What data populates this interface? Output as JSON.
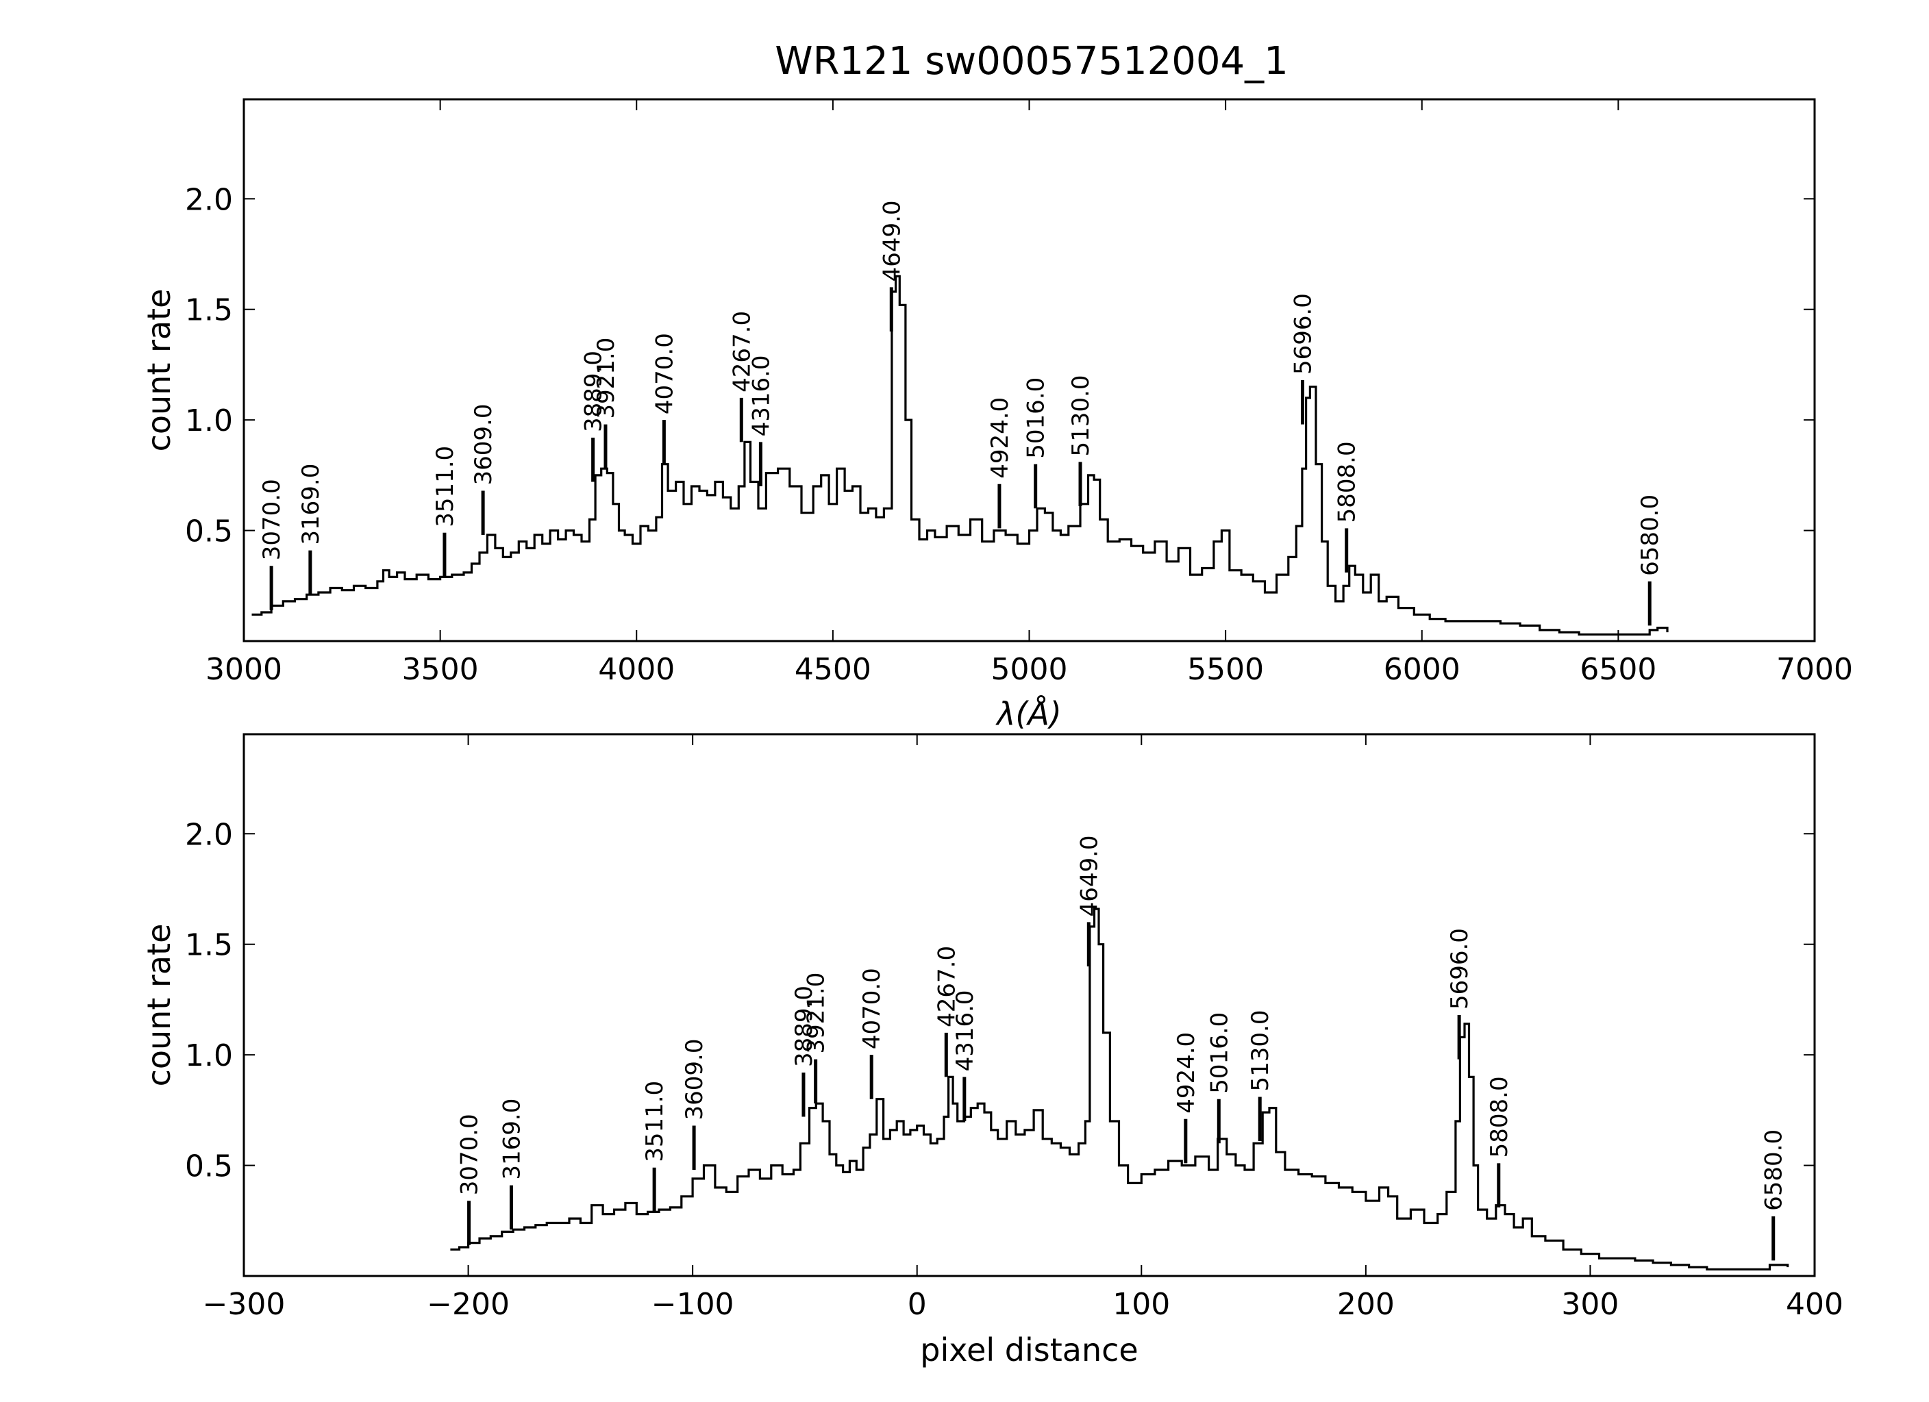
{
  "chart_data": {
    "type": "line",
    "title": "WR121  sw00057512004_1",
    "panels": [
      {
        "id": "wavelength",
        "xlabel": "λ(Å)",
        "ylabel": "count rate",
        "xlim": [
          3000,
          7000
        ],
        "ylim": [
          0,
          2.45
        ],
        "xticks": [
          3000,
          3500,
          4000,
          4500,
          5000,
          5500,
          6000,
          6500,
          7000
        ],
        "xtick_labels": [
          "3000",
          "3500",
          "4000",
          "4500",
          "5000",
          "5500",
          "6000",
          "6500",
          "7000"
        ],
        "yticks": [
          0.5,
          1.0,
          1.5,
          2.0
        ],
        "ytick_labels": [
          "0.5",
          "1.0",
          "1.5",
          "2.0"
        ],
        "lines": [
          {
            "x": 3070,
            "label": "3070.0",
            "y0": 0.14,
            "y1": 0.34
          },
          {
            "x": 3169,
            "label": "3169.0",
            "y0": 0.21,
            "y1": 0.41
          },
          {
            "x": 3511,
            "label": "3511.0",
            "y0": 0.29,
            "y1": 0.49
          },
          {
            "x": 3609,
            "label": "3609.0",
            "y0": 0.48,
            "y1": 0.68
          },
          {
            "x": 3889,
            "label": "3889.0",
            "y0": 0.72,
            "y1": 0.92
          },
          {
            "x": 3921,
            "label": "3921.0",
            "y0": 0.78,
            "y1": 0.98
          },
          {
            "x": 4070,
            "label": "4070.0",
            "y0": 0.8,
            "y1": 1.0
          },
          {
            "x": 4267,
            "label": "4267.0",
            "y0": 0.9,
            "y1": 1.1
          },
          {
            "x": 4316,
            "label": "4316.0",
            "y0": 0.7,
            "y1": 0.9
          },
          {
            "x": 4649,
            "label": "4649.0",
            "y0": 1.4,
            "y1": 1.6
          },
          {
            "x": 4924,
            "label": "4924.0",
            "y0": 0.51,
            "y1": 0.71
          },
          {
            "x": 5016,
            "label": "5016.0",
            "y0": 0.6,
            "y1": 0.8
          },
          {
            "x": 5130,
            "label": "5130.0",
            "y0": 0.61,
            "y1": 0.81
          },
          {
            "x": 5696,
            "label": "5696.0",
            "y0": 0.98,
            "y1": 1.18
          },
          {
            "x": 5808,
            "label": "5808.0",
            "y0": 0.31,
            "y1": 0.51
          },
          {
            "x": 6580,
            "label": "6580.0",
            "y0": 0.07,
            "y1": 0.27
          }
        ],
        "series": [
          {
            "x": [
              3020,
              3045,
              3070,
              3100,
              3130,
              3160,
              3190,
              3220,
              3250,
              3280,
              3310,
              3340,
              3355,
              3370,
              3390,
              3410,
              3440,
              3470,
              3500,
              3530,
              3560,
              3580,
              3600,
              3620,
              3640,
              3660,
              3680,
              3700,
              3720,
              3740,
              3760,
              3780,
              3800,
              3820,
              3840,
              3860,
              3880,
              3895,
              3910,
              3925,
              3940,
              3955,
              3970,
              3990,
              4010,
              4030,
              4050,
              4065,
              4080,
              4100,
              4120,
              4140,
              4160,
              4180,
              4200,
              4220,
              4240,
              4260,
              4275,
              4290,
              4310,
              4330,
              4360,
              4390,
              4420,
              4450,
              4470,
              4490,
              4510,
              4530,
              4550,
              4570,
              4590,
              4610,
              4630,
              4650,
              4660,
              4670,
              4685,
              4700,
              4720,
              4740,
              4760,
              4790,
              4820,
              4850,
              4880,
              4910,
              4940,
              4970,
              5000,
              5020,
              5040,
              5060,
              5080,
              5100,
              5130,
              5150,
              5165,
              5180,
              5200,
              5230,
              5260,
              5290,
              5320,
              5350,
              5380,
              5410,
              5440,
              5470,
              5490,
              5510,
              5540,
              5570,
              5600,
              5630,
              5660,
              5680,
              5695,
              5705,
              5715,
              5730,
              5745,
              5760,
              5780,
              5800,
              5815,
              5830,
              5850,
              5870,
              5890,
              5910,
              5940,
              5980,
              6020,
              6060,
              6100,
              6150,
              6200,
              6250,
              6300,
              6350,
              6400,
              6450,
              6500,
              6550,
              6580,
              6600,
              6625
            ],
            "y": [
              0.12,
              0.13,
              0.16,
              0.18,
              0.19,
              0.21,
              0.22,
              0.24,
              0.23,
              0.25,
              0.24,
              0.27,
              0.32,
              0.29,
              0.31,
              0.28,
              0.3,
              0.28,
              0.29,
              0.3,
              0.31,
              0.35,
              0.4,
              0.48,
              0.42,
              0.38,
              0.4,
              0.45,
              0.42,
              0.48,
              0.44,
              0.5,
              0.46,
              0.5,
              0.48,
              0.45,
              0.55,
              0.75,
              0.78,
              0.76,
              0.62,
              0.5,
              0.48,
              0.44,
              0.52,
              0.5,
              0.56,
              0.8,
              0.68,
              0.72,
              0.62,
              0.7,
              0.68,
              0.66,
              0.72,
              0.65,
              0.6,
              0.7,
              0.9,
              0.72,
              0.6,
              0.76,
              0.78,
              0.7,
              0.58,
              0.7,
              0.75,
              0.62,
              0.78,
              0.68,
              0.7,
              0.58,
              0.6,
              0.56,
              0.6,
              1.58,
              1.65,
              1.52,
              1.0,
              0.55,
              0.46,
              0.5,
              0.47,
              0.52,
              0.48,
              0.55,
              0.45,
              0.5,
              0.48,
              0.44,
              0.5,
              0.6,
              0.58,
              0.5,
              0.48,
              0.52,
              0.62,
              0.75,
              0.73,
              0.55,
              0.45,
              0.46,
              0.43,
              0.4,
              0.45,
              0.36,
              0.42,
              0.3,
              0.33,
              0.45,
              0.5,
              0.32,
              0.3,
              0.27,
              0.22,
              0.3,
              0.38,
              0.52,
              0.78,
              1.1,
              1.15,
              0.8,
              0.45,
              0.25,
              0.18,
              0.25,
              0.34,
              0.3,
              0.22,
              0.3,
              0.18,
              0.2,
              0.15,
              0.12,
              0.1,
              0.09,
              0.09,
              0.09,
              0.08,
              0.07,
              0.05,
              0.04,
              0.03,
              0.03,
              0.03,
              0.03,
              0.05,
              0.06,
              0.04
            ]
          }
        ]
      },
      {
        "id": "pixel",
        "xlabel": "pixel distance",
        "ylabel": "count rate",
        "xlim": [
          -300,
          400
        ],
        "ylim": [
          0,
          2.45
        ],
        "xticks": [
          -300,
          -200,
          -100,
          0,
          100,
          200,
          300,
          400
        ],
        "xtick_labels": [
          "−300",
          "−200",
          "−100",
          "0",
          "100",
          "200",
          "300",
          "400"
        ],
        "yticks": [
          0.5,
          1.0,
          1.5,
          2.0
        ],
        "ytick_labels": [
          "0.5",
          "1.0",
          "1.5",
          "2.0"
        ],
        "lines": [
          {
            "x": -199.7,
            "label": "3070.0",
            "y0": 0.14,
            "y1": 0.34
          },
          {
            "x": -180.8,
            "label": "3169.0",
            "y0": 0.21,
            "y1": 0.41
          },
          {
            "x": -117.1,
            "label": "3511.0",
            "y0": 0.29,
            "y1": 0.49
          },
          {
            "x": -99.4,
            "label": "3609.0",
            "y0": 0.48,
            "y1": 0.68
          },
          {
            "x": -50.6,
            "label": "3889.0",
            "y0": 0.72,
            "y1": 0.92
          },
          {
            "x": -45.2,
            "label": "3921.0",
            "y0": 0.78,
            "y1": 0.98
          },
          {
            "x": -20.3,
            "label": "4070.0",
            "y0": 0.8,
            "y1": 1.0
          },
          {
            "x": 13.0,
            "label": "4267.0",
            "y0": 0.9,
            "y1": 1.1
          },
          {
            "x": 21.1,
            "label": "4316.0",
            "y0": 0.7,
            "y1": 0.9
          },
          {
            "x": 76.5,
            "label": "4649.0",
            "y0": 1.4,
            "y1": 1.6
          },
          {
            "x": 119.7,
            "label": "4924.0",
            "y0": 0.51,
            "y1": 0.71
          },
          {
            "x": 134.5,
            "label": "5016.0",
            "y0": 0.6,
            "y1": 0.8
          },
          {
            "x": 152.8,
            "label": "5130.0",
            "y0": 0.61,
            "y1": 0.81
          },
          {
            "x": 241.6,
            "label": "5696.0",
            "y0": 0.98,
            "y1": 1.18
          },
          {
            "x": 259.2,
            "label": "5808.0",
            "y0": 0.31,
            "y1": 0.51
          },
          {
            "x": 381.6,
            "label": "6580.0",
            "y0": 0.07,
            "y1": 0.27
          }
        ],
        "series": [
          {
            "x": [
              -208,
              -204,
              -200,
              -195,
              -190,
              -185,
              -180,
              -175,
              -170,
              -165,
              -160,
              -155,
              -150,
              -145,
              -140,
              -135,
              -130,
              -125,
              -120,
              -115,
              -110,
              -105,
              -100,
              -95,
              -90,
              -85,
              -80,
              -75,
              -70,
              -65,
              -60,
              -55,
              -52,
              -48,
              -45,
              -42,
              -39,
              -36,
              -33,
              -30,
              -27,
              -24,
              -21,
              -18,
              -15,
              -12,
              -9,
              -6,
              -3,
              0,
              3,
              6,
              9,
              12,
              14,
              16,
              18,
              21,
              24,
              27,
              30,
              33,
              36,
              40,
              44,
              48,
              52,
              56,
              60,
              64,
              68,
              72,
              75,
              77,
              79,
              81,
              83,
              86,
              90,
              94,
              100,
              106,
              112,
              118,
              124,
              130,
              134,
              138,
              142,
              146,
              150,
              154,
              157,
              160,
              164,
              170,
              176,
              182,
              188,
              194,
              200,
              206,
              210,
              214,
              220,
              226,
              232,
              236,
              240,
              242,
              244,
              246,
              248,
              250,
              254,
              258,
              262,
              266,
              270,
              274,
              280,
              288,
              296,
              304,
              312,
              320,
              328,
              336,
              344,
              352,
              360,
              368,
              376,
              380,
              384,
              388
            ],
            "y": [
              0.12,
              0.13,
              0.15,
              0.17,
              0.18,
              0.2,
              0.21,
              0.22,
              0.23,
              0.24,
              0.24,
              0.26,
              0.24,
              0.32,
              0.28,
              0.3,
              0.33,
              0.28,
              0.29,
              0.3,
              0.31,
              0.36,
              0.44,
              0.5,
              0.4,
              0.38,
              0.45,
              0.48,
              0.44,
              0.5,
              0.46,
              0.48,
              0.6,
              0.76,
              0.78,
              0.7,
              0.55,
              0.5,
              0.47,
              0.52,
              0.48,
              0.58,
              0.64,
              0.8,
              0.62,
              0.66,
              0.7,
              0.64,
              0.66,
              0.68,
              0.64,
              0.6,
              0.62,
              0.72,
              0.9,
              0.78,
              0.7,
              0.72,
              0.76,
              0.78,
              0.74,
              0.66,
              0.62,
              0.7,
              0.64,
              0.66,
              0.75,
              0.62,
              0.6,
              0.58,
              0.55,
              0.6,
              0.7,
              1.58,
              1.66,
              1.5,
              1.1,
              0.7,
              0.5,
              0.42,
              0.46,
              0.48,
              0.52,
              0.5,
              0.54,
              0.48,
              0.62,
              0.55,
              0.5,
              0.48,
              0.6,
              0.74,
              0.76,
              0.56,
              0.48,
              0.46,
              0.45,
              0.42,
              0.4,
              0.38,
              0.34,
              0.4,
              0.36,
              0.26,
              0.3,
              0.24,
              0.28,
              0.38,
              0.7,
              1.08,
              1.14,
              0.9,
              0.5,
              0.3,
              0.26,
              0.32,
              0.28,
              0.22,
              0.26,
              0.18,
              0.16,
              0.12,
              0.1,
              0.08,
              0.08,
              0.07,
              0.06,
              0.05,
              0.04,
              0.03,
              0.03,
              0.03,
              0.03,
              0.05,
              0.05,
              0.04
            ]
          }
        ]
      }
    ]
  }
}
